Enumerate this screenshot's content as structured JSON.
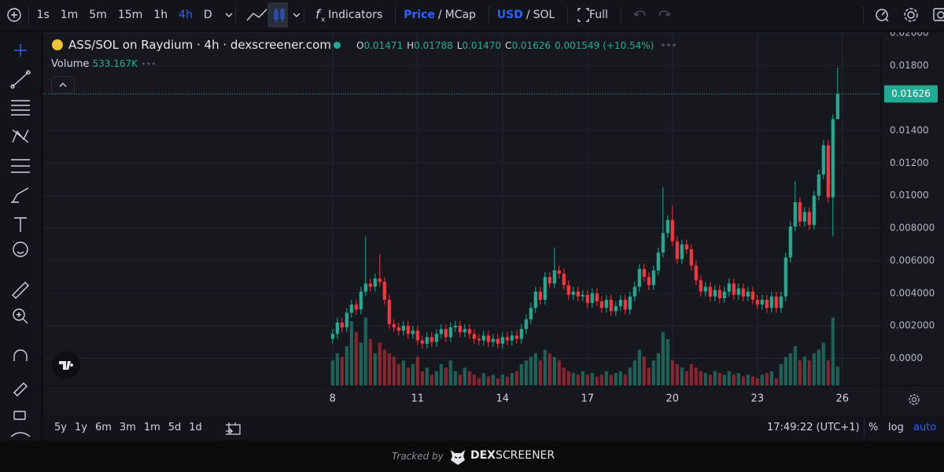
{
  "toolbar": {
    "intervals": [
      "1s",
      "1m",
      "5m",
      "15m",
      "1h",
      "4h",
      "D"
    ],
    "indicators": "Indicators",
    "price": "Price",
    "price_sep": "/",
    "mcap": "MCap",
    "usd": "USD",
    "cur_sep": "/",
    "sol": "SOL",
    "full": "Full"
  },
  "legend": {
    "title": "ASS/SOL on Raydium · 4h · dexscreener.com",
    "o": "O",
    "h": "H",
    "l": "L",
    "c": "C",
    "volume": "Volume"
  },
  "chart_data": {
    "type": "candlestick",
    "up_color": "#22ab94",
    "down_color": "#f23645",
    "grid": true,
    "open": [
      0.0012,
      0.0015,
      0.0022,
      0.0019,
      0.0028,
      0.0033,
      0.003,
      0.0041,
      0.0046,
      0.0044,
      0.0049,
      0.0047,
      0.0036,
      0.0021,
      0.0019,
      0.0017,
      0.002,
      0.0015,
      0.0017,
      0.0011,
      0.0009,
      0.0013,
      0.001,
      0.0015,
      0.0018,
      0.0013,
      0.0019,
      0.002,
      0.0016,
      0.0018,
      0.0015,
      0.0012,
      0.0011,
      0.0014,
      0.001,
      0.0012,
      0.0009,
      0.0013,
      0.0011,
      0.0014,
      0.0012,
      0.0018,
      0.0024,
      0.0031,
      0.0041,
      0.0036,
      0.005,
      0.0046,
      0.0054,
      0.0052,
      0.0045,
      0.0039,
      0.0041,
      0.0038,
      0.0039,
      0.0034,
      0.004,
      0.0035,
      0.0031,
      0.0036,
      0.0029,
      0.0032,
      0.0036,
      0.003,
      0.0038,
      0.0044,
      0.0055,
      0.005,
      0.0045,
      0.0054,
      0.0065,
      0.0077,
      0.0085,
      0.0072,
      0.0061,
      0.007,
      0.0067,
      0.0057,
      0.0048,
      0.0041,
      0.0044,
      0.0038,
      0.0042,
      0.0037,
      0.0041,
      0.0046,
      0.0039,
      0.0043,
      0.0038,
      0.0041,
      0.0036,
      0.0033,
      0.0036,
      0.0031,
      0.0038,
      0.0031,
      0.0038,
      0.0062,
      0.0081,
      0.0096,
      0.0084,
      0.009,
      0.0082,
      0.01,
      0.0113,
      0.0131,
      0.0099,
      0.01471
    ],
    "high": [
      0.0018,
      0.0025,
      0.0025,
      0.0031,
      0.0036,
      0.0036,
      0.0044,
      0.0075,
      0.0049,
      0.0052,
      0.0064,
      0.005,
      0.0039,
      0.0024,
      0.0022,
      0.0023,
      0.0023,
      0.002,
      0.002,
      0.0014,
      0.0016,
      0.0016,
      0.0018,
      0.0021,
      0.0021,
      0.0022,
      0.0023,
      0.0023,
      0.0021,
      0.0021,
      0.0018,
      0.0015,
      0.0017,
      0.0017,
      0.0015,
      0.0015,
      0.0016,
      0.0016,
      0.0017,
      0.0017,
      0.0021,
      0.0027,
      0.0034,
      0.0044,
      0.0044,
      0.0053,
      0.0053,
      0.0068,
      0.0057,
      0.0055,
      0.0048,
      0.0044,
      0.0044,
      0.0042,
      0.0042,
      0.0043,
      0.0043,
      0.0038,
      0.0039,
      0.0039,
      0.0035,
      0.0039,
      0.0039,
      0.0041,
      0.0047,
      0.0058,
      0.0058,
      0.0053,
      0.0057,
      0.0068,
      0.0105,
      0.0088,
      0.0094,
      0.0075,
      0.0073,
      0.0073,
      0.007,
      0.006,
      0.0051,
      0.0047,
      0.0047,
      0.0045,
      0.0045,
      0.0044,
      0.0049,
      0.0049,
      0.0046,
      0.0046,
      0.0044,
      0.0044,
      0.0039,
      0.0039,
      0.0039,
      0.0041,
      0.0041,
      0.0041,
      0.0065,
      0.0084,
      0.0109,
      0.0099,
      0.0093,
      0.0093,
      0.0103,
      0.0116,
      0.0134,
      0.0134,
      0.015,
      0.01788
    ],
    "low": [
      0.0009,
      0.0012,
      0.0016,
      0.0016,
      0.0025,
      0.0027,
      0.0027,
      0.0038,
      0.0041,
      0.0041,
      0.0044,
      0.0033,
      0.0018,
      0.0016,
      0.0014,
      0.0014,
      0.0012,
      0.0012,
      0.0008,
      0.0006,
      0.0006,
      0.0007,
      0.0007,
      0.0012,
      0.001,
      0.001,
      0.0016,
      0.0013,
      0.0013,
      0.0012,
      0.0009,
      0.0008,
      0.0008,
      0.0007,
      0.0007,
      0.0006,
      0.0006,
      0.0008,
      0.0008,
      0.0009,
      0.0009,
      0.0015,
      0.0021,
      0.0028,
      0.0033,
      0.0033,
      0.0043,
      0.0043,
      0.0049,
      0.0042,
      0.0036,
      0.0036,
      0.0035,
      0.0035,
      0.0031,
      0.0031,
      0.0032,
      0.0028,
      0.0028,
      0.0026,
      0.0026,
      0.0029,
      0.0027,
      0.0027,
      0.0035,
      0.0041,
      0.0047,
      0.0042,
      0.0042,
      0.0051,
      0.0062,
      0.0074,
      0.0069,
      0.0058,
      0.0058,
      0.0064,
      0.0054,
      0.0045,
      0.0038,
      0.0038,
      0.0035,
      0.0035,
      0.0034,
      0.0034,
      0.0038,
      0.0036,
      0.0036,
      0.0035,
      0.0035,
      0.0033,
      0.003,
      0.003,
      0.0028,
      0.0028,
      0.0028,
      0.0028,
      0.0035,
      0.0059,
      0.0078,
      0.0081,
      0.0081,
      0.0079,
      0.0079,
      0.0097,
      0.011,
      0.0096,
      0.0075,
      0.0147
    ],
    "close": [
      0.0015,
      0.0022,
      0.0019,
      0.0028,
      0.0033,
      0.003,
      0.0041,
      0.0046,
      0.0044,
      0.0049,
      0.0047,
      0.0036,
      0.0021,
      0.0019,
      0.0017,
      0.002,
      0.0015,
      0.0017,
      0.0011,
      0.0009,
      0.0013,
      0.001,
      0.0015,
      0.0018,
      0.0013,
      0.0019,
      0.002,
      0.0016,
      0.0018,
      0.0015,
      0.0012,
      0.0011,
      0.0014,
      0.001,
      0.0012,
      0.0009,
      0.0013,
      0.0011,
      0.0014,
      0.0012,
      0.0018,
      0.0024,
      0.0031,
      0.0041,
      0.0036,
      0.005,
      0.0046,
      0.0054,
      0.0052,
      0.0045,
      0.0039,
      0.0041,
      0.0038,
      0.0039,
      0.0034,
      0.004,
      0.0035,
      0.0031,
      0.0036,
      0.0029,
      0.0032,
      0.0036,
      0.003,
      0.0038,
      0.0044,
      0.0055,
      0.005,
      0.0045,
      0.0054,
      0.0065,
      0.0077,
      0.0085,
      0.0072,
      0.0061,
      0.007,
      0.0067,
      0.0057,
      0.0048,
      0.0041,
      0.0044,
      0.0038,
      0.0042,
      0.0037,
      0.0041,
      0.0046,
      0.0039,
      0.0043,
      0.0038,
      0.0041,
      0.0036,
      0.0033,
      0.0036,
      0.0031,
      0.0038,
      0.0031,
      0.0038,
      0.0062,
      0.0081,
      0.0096,
      0.0084,
      0.009,
      0.0082,
      0.01,
      0.0113,
      0.0131,
      0.0099,
      0.01471,
      0.01626
    ],
    "volume": [
      700,
      900,
      800,
      1100,
      1800,
      1500,
      1200,
      1900,
      1300,
      900,
      1200,
      1000,
      900,
      800,
      600,
      700,
      500,
      600,
      800,
      400,
      500,
      300,
      400,
      600,
      500,
      700,
      400,
      300,
      500,
      400,
      300,
      200,
      350,
      250,
      300,
      200,
      300,
      250,
      350,
      400,
      600,
      700,
      800,
      900,
      700,
      1000,
      900,
      800,
      700,
      500,
      400,
      350,
      300,
      400,
      300,
      350,
      250,
      300,
      400,
      300,
      350,
      400,
      300,
      500,
      700,
      1000,
      800,
      500,
      700,
      900,
      1500,
      1300,
      700,
      600,
      500,
      400,
      600,
      500,
      400,
      350,
      300,
      400,
      350,
      300,
      400,
      300,
      350,
      250,
      300,
      250,
      200,
      300,
      350,
      400,
      200,
      600,
      800,
      900,
      1100,
      700,
      800,
      700,
      900,
      1000,
      1200,
      700,
      1900,
      533.167
    ],
    "volume_label": "533.167K",
    "volume_lim": [
      0,
      2200
    ],
    "last_labels": {
      "open": "0.01471",
      "high": "0.01788",
      "low": "0.01470",
      "close": "0.01626",
      "change": "0.001549 (+10.54%)"
    },
    "xlim": [
      -61.3,
      116.2
    ],
    "xticks": [
      {
        "value": 0,
        "label": "8"
      },
      {
        "value": 18,
        "label": "11"
      },
      {
        "value": 36,
        "label": "14"
      },
      {
        "value": 54,
        "label": "17"
      },
      {
        "value": 72,
        "label": "20"
      },
      {
        "value": 90,
        "label": "23"
      },
      {
        "value": 108,
        "label": "26"
      }
    ],
    "ylim": [
      -0.00167,
      0.02
    ],
    "yticks": [
      {
        "value": 0,
        "label": "0.0000"
      },
      {
        "value": 0.002,
        "label": "0.002000"
      },
      {
        "value": 0.004,
        "label": "0.004000"
      },
      {
        "value": 0.006,
        "label": "0.006000"
      },
      {
        "value": 0.008,
        "label": "0.008000"
      },
      {
        "value": 0.01,
        "label": "0.01000"
      },
      {
        "value": 0.012,
        "label": "0.01200"
      },
      {
        "value": 0.014,
        "label": "0.01400"
      },
      {
        "value": 0.018,
        "label": "0.01800"
      },
      {
        "value": 0.02,
        "label": "0.02000"
      }
    ]
  },
  "bottom_bar": {
    "ranges": [
      "5y",
      "1y",
      "6m",
      "3m",
      "1m",
      "5d",
      "1d"
    ],
    "time": "17:49:22 (UTC+1)",
    "pct": "%",
    "log": "log",
    "auto": "auto"
  },
  "footer": {
    "tracked": "Tracked by",
    "dex": "DEX",
    "screener": "SCREENER"
  }
}
